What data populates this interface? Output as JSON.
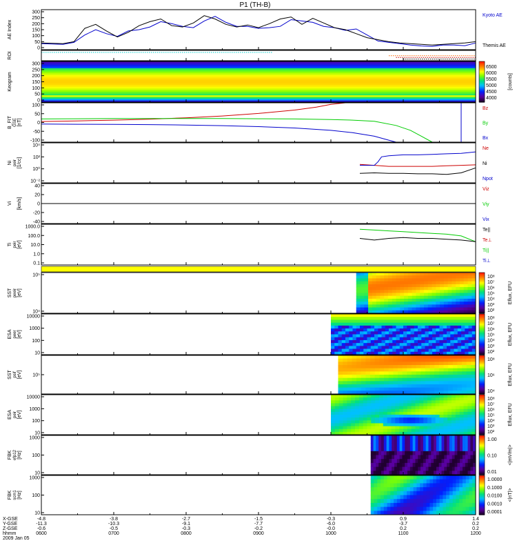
{
  "title": "P1 (TH-B)",
  "colors": {
    "blue": "#0000cc",
    "red": "#cc0000",
    "green": "#00cc00",
    "black": "#000000",
    "yellow": "#ffff00",
    "cyan": "#00cccc",
    "orange": "#ff6600"
  },
  "chart_data": [
    {
      "type": "line",
      "panel": "ae",
      "ylabel": "AE Index",
      "yticks": [
        "300",
        "250",
        "200",
        "150",
        "100",
        "50",
        "0"
      ],
      "ylim": [
        0,
        300
      ],
      "legend": [
        "Kyoto AE",
        "Themis AE"
      ],
      "series": [
        {
          "name": "Kyoto AE",
          "color": "#0000cc",
          "x": [
            0,
            0.3,
            0.45,
            0.6,
            0.75,
            0.9,
            1.05,
            1.2,
            1.35,
            1.5,
            1.65,
            1.8,
            1.95,
            2.1,
            2.25,
            2.4,
            2.55,
            2.7,
            2.85,
            3.0,
            3.15,
            3.3,
            3.45,
            3.6,
            3.75,
            3.9,
            4.05,
            4.2,
            4.35,
            4.5,
            4.65,
            4.8,
            4.95,
            5.1,
            5.25,
            5.4,
            5.55,
            5.7,
            5.85,
            6.0
          ],
          "values": [
            45,
            40,
            55,
            110,
            150,
            120,
            100,
            140,
            150,
            170,
            210,
            195,
            175,
            165,
            215,
            250,
            205,
            175,
            175,
            160,
            165,
            175,
            225,
            215,
            205,
            175,
            165,
            145,
            155,
            110,
            65,
            55,
            45,
            35,
            28,
            25,
            35,
            35,
            30,
            50
          ]
        },
        {
          "name": "Themis AE",
          "color": "#000000",
          "x": [
            0,
            0.3,
            0.45,
            0.6,
            0.75,
            0.9,
            1.05,
            1.2,
            1.35,
            1.5,
            1.65,
            1.8,
            1.95,
            2.1,
            2.25,
            2.4,
            2.55,
            2.7,
            2.85,
            3.0,
            3.15,
            3.3,
            3.45,
            3.6,
            3.75,
            3.9,
            4.05,
            4.2,
            4.35,
            4.5,
            4.65,
            4.8,
            4.95,
            5.1,
            5.25,
            5.4,
            5.55,
            5.7,
            5.85,
            6.0
          ],
          "values": [
            50,
            45,
            60,
            160,
            190,
            140,
            95,
            130,
            180,
            210,
            230,
            180,
            170,
            200,
            255,
            230,
            190,
            170,
            185,
            165,
            195,
            230,
            245,
            190,
            235,
            200,
            165,
            150,
            120,
            90,
            75,
            60,
            50,
            45,
            40,
            35,
            40,
            45,
            50,
            60
          ]
        }
      ]
    },
    {
      "type": "line",
      "panel": "roi",
      "ylabel": "ROI",
      "series": [
        {
          "name": "",
          "color": "#00cccc",
          "x": [
            0,
            3.2
          ],
          "values": [
            1,
            1
          ]
        },
        {
          "name": "",
          "color": "#ff6600",
          "x": [
            4.8,
            6.0
          ],
          "values": [
            0.6,
            0.6
          ]
        },
        {
          "name": "",
          "color": "#cc0000",
          "x": [
            4.9,
            6.0
          ],
          "values": [
            0.4,
            0.4
          ]
        },
        {
          "name": "",
          "color": "#000000",
          "x": [
            5.0,
            6.0
          ],
          "values": [
            0.2,
            0.2
          ]
        }
      ]
    },
    {
      "type": "heatmap",
      "panel": "keogram",
      "ylabel": "Keogram",
      "yticks": [
        "300",
        "250",
        "200",
        "150",
        "100",
        "50",
        "0"
      ],
      "colorbar_label": "[counts]",
      "colorbar_ticks": [
        "6500",
        "6000",
        "5500",
        "5000",
        "4500",
        "4000"
      ]
    },
    {
      "type": "line",
      "panel": "bfield",
      "ylabel": "B_FIT",
      "ylabel2": "GSE",
      "units": "[nT]",
      "yticks": [
        "100",
        "50",
        "0",
        "-50",
        "-100"
      ],
      "ylim": [
        -100,
        100
      ],
      "legend": [
        "Bz",
        "By",
        "Bx"
      ],
      "series": [
        {
          "name": "Bz",
          "color": "#cc0000",
          "x": [
            0,
            0.5,
            1,
            1.5,
            2,
            2.5,
            3,
            3.5,
            3.8,
            4.0,
            4.2,
            4.25
          ],
          "values": [
            5,
            8,
            12,
            17,
            24,
            33,
            46,
            63,
            78,
            92,
            100,
            102
          ]
        },
        {
          "name": "By",
          "color": "#00cc00",
          "x": [
            0,
            0.5,
            1,
            1.5,
            2,
            2.5,
            3,
            3.5,
            4,
            4.3,
            4.6,
            4.9,
            5.1,
            5.25,
            5.4
          ],
          "values": [
            18,
            19,
            20,
            20,
            20,
            20,
            19,
            18,
            15,
            12,
            6,
            -15,
            -40,
            -70,
            -100
          ]
        },
        {
          "name": "Bx",
          "color": "#0000cc",
          "x": [
            0,
            0.5,
            1,
            1.5,
            2,
            2.5,
            3,
            3.5,
            4,
            4.3,
            4.6,
            4.85,
            4.9,
            5.8,
            5.8
          ],
          "values": [
            -8,
            -9,
            -10,
            -11,
            -13,
            -16,
            -21,
            -28,
            -40,
            -52,
            -70,
            -95,
            -100,
            -100,
            100
          ]
        }
      ]
    },
    {
      "type": "line",
      "panel": "density",
      "ylog": true,
      "ylabel": "Ni",
      "ylabel2": "peir",
      "units": "[1/cc]",
      "yticks": [
        "10^4",
        "10^2",
        "10^0",
        "10^-2"
      ],
      "legend": [
        "Ne",
        "Ni",
        "Npot"
      ],
      "series": [
        {
          "name": "Ne",
          "color": "#cc0000",
          "x": [
            4.4,
            4.6,
            4.8,
            5.0,
            5.2,
            5.4,
            5.6,
            5.8,
            6.0
          ],
          "values": [
            0.7,
            0.5,
            0.3,
            0.3,
            0.3,
            0.3,
            0.4,
            0.5,
            0.6
          ]
        },
        {
          "name": "Ni",
          "color": "#000000",
          "x": [
            4.4,
            4.6,
            4.8,
            5.0,
            5.2,
            5.4,
            5.6,
            5.8,
            6.0
          ],
          "values": [
            -1.1,
            -1.0,
            -1.1,
            -1.1,
            -1.2,
            -1.2,
            -1.3,
            -1.0,
            0.0
          ]
        },
        {
          "name": "Npot",
          "color": "#0000cc",
          "x": [
            4.4,
            4.6,
            4.65,
            4.7,
            4.8,
            5.0,
            5.2,
            5.4,
            5.6,
            5.8,
            6.0
          ],
          "values": [
            0.5,
            0.5,
            1.2,
            2.2,
            2.4,
            2.6,
            2.6,
            2.7,
            2.8,
            2.9,
            3.2
          ]
        }
      ]
    },
    {
      "type": "line",
      "panel": "velocity",
      "ylabel": "Vi",
      "units": "[km/s]",
      "yticks": [
        "40",
        "20",
        "0",
        "-20",
        "-40"
      ],
      "ylim": [
        -50,
        50
      ],
      "legend": [
        "Viz",
        "Viy",
        "Vix"
      ],
      "series": [
        {
          "name": "",
          "color": "#000000",
          "x": [
            0,
            6.0
          ],
          "values": [
            0,
            0
          ]
        }
      ]
    },
    {
      "type": "line",
      "panel": "temperature",
      "ylog": true,
      "ylabel": "Ti",
      "ylabel2": "peir",
      "units": "[eV]",
      "yticks": [
        "1000.0",
        "100.0",
        "10.0",
        "1.0",
        "0.1"
      ],
      "legend": [
        "Te||",
        "Te⊥",
        "Ti||",
        "Ti⊥"
      ],
      "series": [
        {
          "name": "Ti||",
          "color": "#00cc00",
          "x": [
            4.4,
            4.6,
            4.8,
            5.0,
            5.2,
            5.4,
            5.6,
            5.8,
            6.0
          ],
          "values": [
            3.1,
            3.0,
            2.9,
            2.8,
            2.7,
            2.6,
            2.5,
            2.3,
            1.6
          ]
        },
        {
          "name": "Te||",
          "color": "#000000",
          "x": [
            4.4,
            4.6,
            4.8,
            5.0,
            5.2,
            5.4,
            5.6,
            5.8,
            6.0
          ],
          "values": [
            2.0,
            1.8,
            2.0,
            2.1,
            2.0,
            2.0,
            1.9,
            1.8,
            1.6
          ]
        }
      ]
    },
    {
      "type": "heatmap",
      "panel": "sst_e",
      "ylabel": "SST",
      "ylabel2": "peeir",
      "units": "[eV]",
      "yticks": [
        "10^5",
        "10^4"
      ],
      "colorbar_label": "Eflux, EFU",
      "colorbar_ticks": [
        "10^8",
        "10^7",
        "10^6",
        "10^5",
        "10^4",
        "10^3",
        "10^2"
      ]
    },
    {
      "type": "heatmap",
      "panel": "esa_e",
      "ylabel": "ESA",
      "ylabel2": "peer",
      "units": "[eV]",
      "yticks": [
        "10000",
        "1000",
        "100",
        "10"
      ],
      "colorbar_label": "Eflux, EFU",
      "colorbar_ticks": [
        "10^8",
        "10^7",
        "10^6",
        "10^5",
        "10^4",
        "10^3",
        "10^2"
      ]
    },
    {
      "type": "heatmap",
      "panel": "sst_i",
      "ylabel": "SST",
      "ylabel2": "psif",
      "units": "[eV]",
      "yticks": [
        "10^5"
      ],
      "colorbar_label": "Eflux, EFU",
      "colorbar_ticks": [
        "10^8",
        "10^6",
        "10^4"
      ]
    },
    {
      "type": "heatmap",
      "panel": "esa_i",
      "ylabel": "ESA",
      "ylabel2": "peir",
      "units": "[eV]",
      "yticks": [
        "10000",
        "1000",
        "100",
        "10"
      ],
      "colorbar_label": "Eflux, EFU",
      "colorbar_ticks": [
        "10^8",
        "10^7",
        "10^6",
        "10^5",
        "10^4",
        "10^3",
        "10^2"
      ]
    },
    {
      "type": "heatmap",
      "panel": "fbk1",
      "ylabel": "FBK",
      "ylabel2": "efp12",
      "units": "[Hz]",
      "yticks": [
        "1000",
        "100",
        "10"
      ],
      "colorbar_label": "<|mV/m|>",
      "colorbar_ticks": [
        "1.00",
        "0.10",
        "0.01"
      ]
    },
    {
      "type": "heatmap",
      "panel": "fbk2",
      "ylabel": "FBK",
      "ylabel2": "scm1",
      "units": "[Hz]",
      "yticks": [
        "1000",
        "100",
        "10"
      ],
      "colorbar_label": "<|nT|>",
      "colorbar_ticks": [
        "1.0000",
        "0.1000",
        "0.0100",
        "0.0010",
        "0.0001"
      ]
    }
  ],
  "axis": {
    "row_labels": [
      "X-GSE",
      "Y-GSE",
      "Z-GSE",
      "hhmm",
      "2009 Jan 05"
    ],
    "columns": [
      {
        "x": [
          "-4.8",
          "-11.3",
          "-0.6"
        ],
        "t": "0600"
      },
      {
        "x": [
          "-3.8",
          "-10.3",
          "-0.5"
        ],
        "t": "0700"
      },
      {
        "x": [
          "-2.7",
          "-9.1",
          "-0.3"
        ],
        "t": "0800"
      },
      {
        "x": [
          "-1.5",
          "-7.7",
          "-0.2"
        ],
        "t": "0900"
      },
      {
        "x": [
          "-0.3",
          "-6.0",
          "-0.0"
        ],
        "t": "1000"
      },
      {
        "x": [
          "0.9",
          "-3.7",
          "0.2"
        ],
        "t": "1100"
      },
      {
        "x": [
          "1.4",
          "0.2",
          "0.2"
        ],
        "t": "1200"
      }
    ]
  }
}
